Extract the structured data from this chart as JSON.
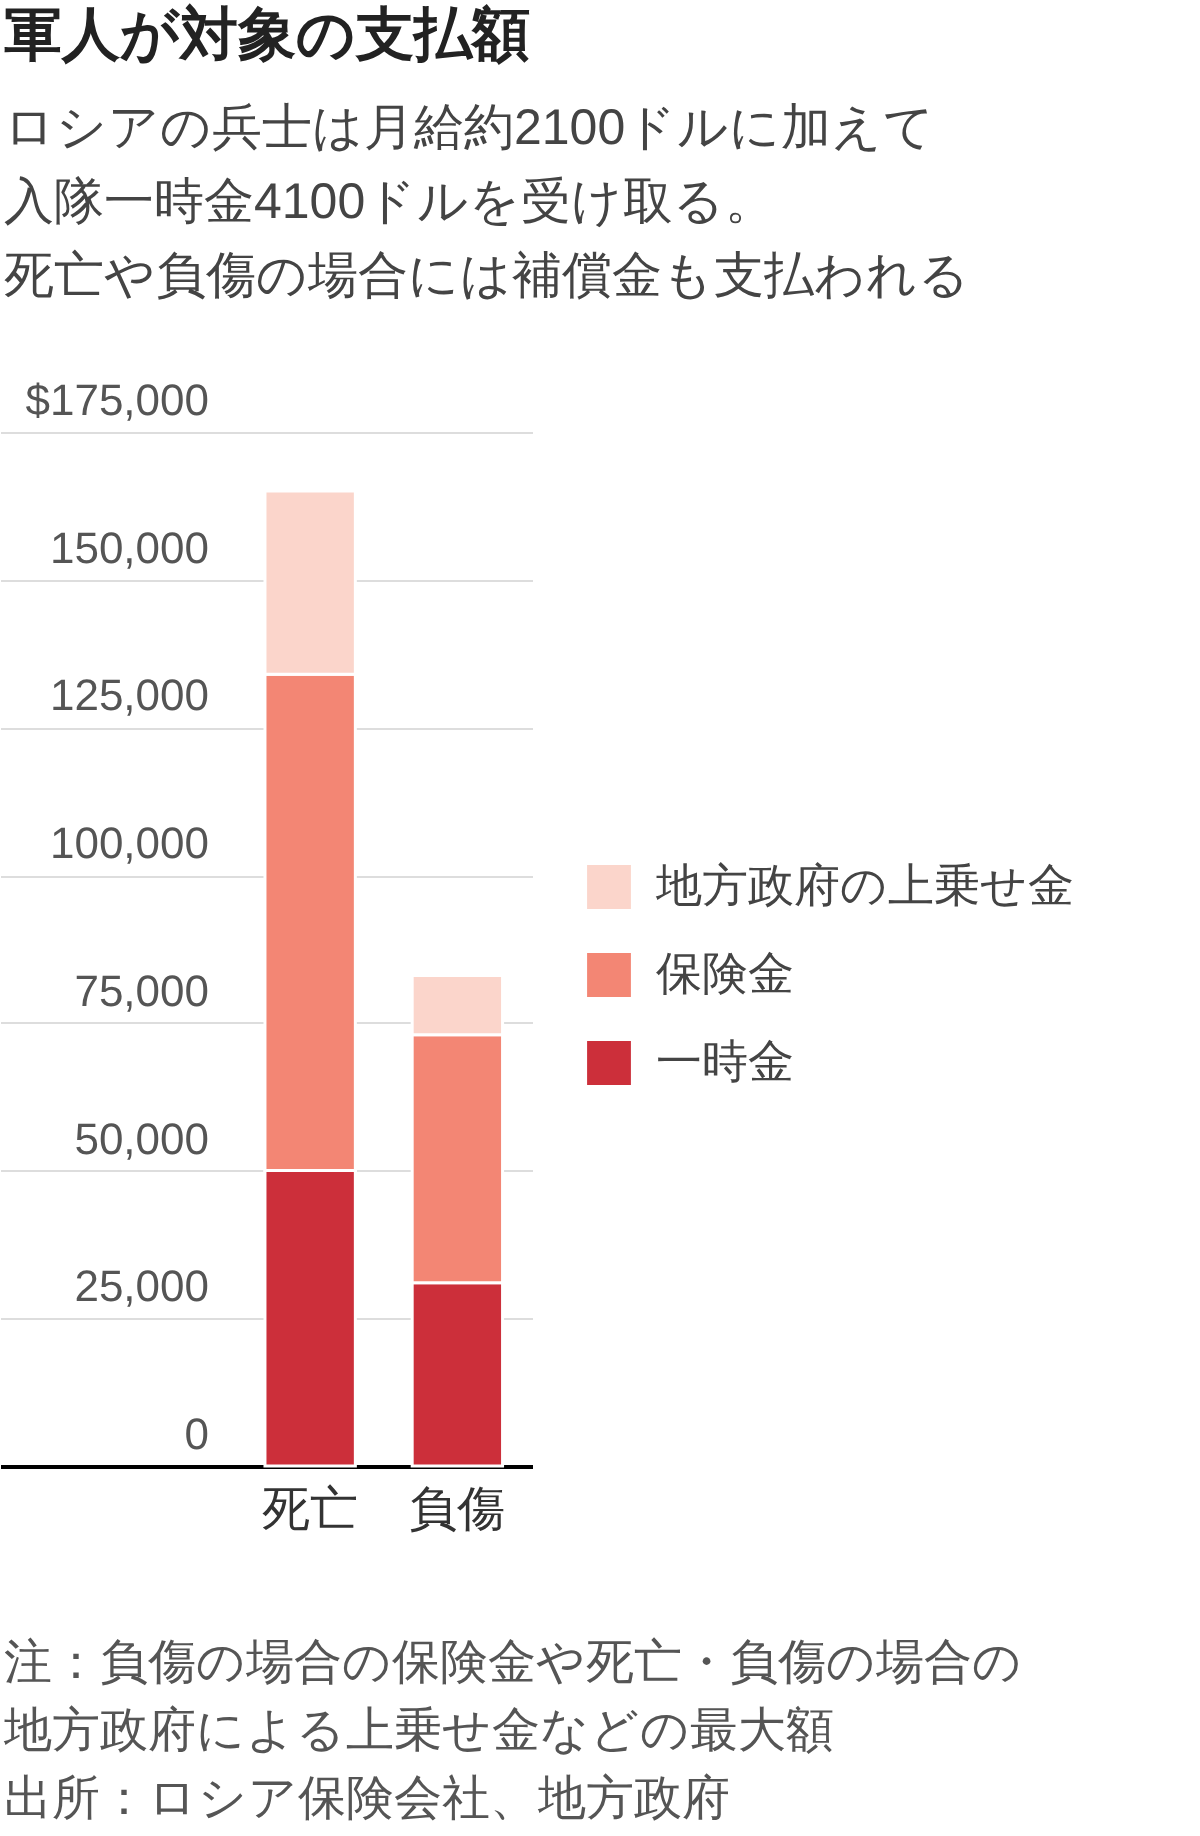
{
  "chart_data": {
    "type": "bar",
    "title": "軍人が対象の支払額",
    "subtitle": "ロシアの兵士は月給約2100ドルに加えて入隊一時金4100ドルを受け取る。死亡や負傷の場合には補償金も支払われる",
    "categories": [
      "死亡",
      "負傷"
    ],
    "stacked": true,
    "series": [
      {
        "name": "一時金",
        "color": "#cc2f3a",
        "values": [
          50000,
          31000
        ]
      },
      {
        "name": "保険金",
        "color": "#f38674",
        "values": [
          84000,
          42000
        ]
      },
      {
        "name": "地方政府の上乗せ金",
        "color": "#fbd5cb",
        "values": [
          31000,
          10000
        ]
      }
    ],
    "ylim": [
      0,
      175000
    ],
    "yticks": [
      0,
      {
        "value": 25000,
        "label": "25,000"
      },
      {
        "value": 50000,
        "label": "50,000"
      },
      {
        "value": 75000,
        "label": "75,000"
      },
      {
        "value": 100000,
        "label": "100,000"
      },
      {
        "value": 125000,
        "label": "125,000"
      },
      {
        "value": 150000,
        "label": "150,000"
      },
      {
        "value": 175000,
        "label": "$175,000"
      }
    ],
    "grid": "y",
    "legend": "right",
    "annotations": [
      "注：負傷の場合の保険金や死亡・負傷の場合の地方政府による上乗せ金などの最大額",
      "出所：ロシア保険会社、地方政府"
    ]
  }
}
